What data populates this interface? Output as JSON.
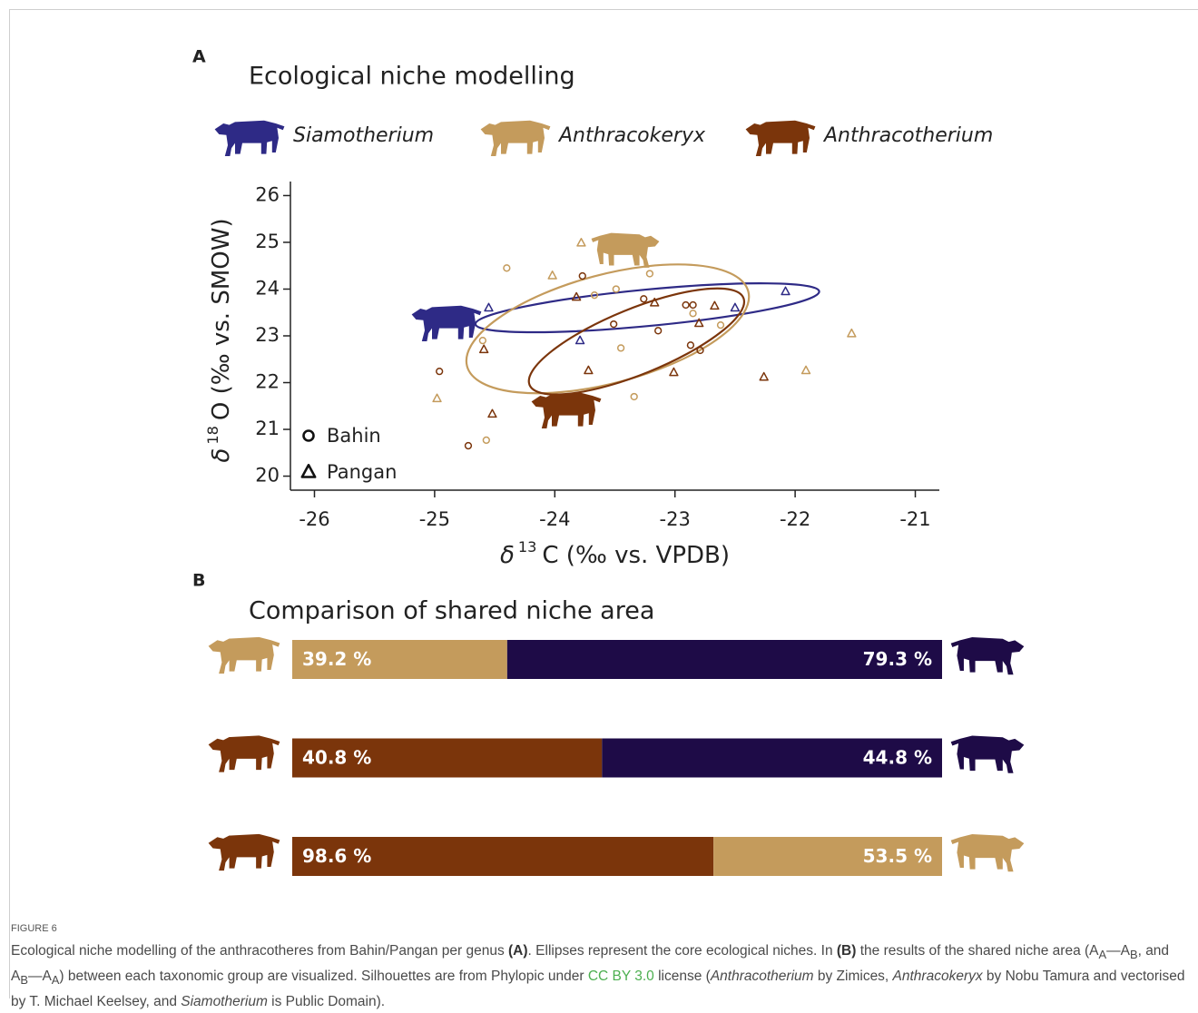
{
  "figure": {
    "label": "FIGURE 6",
    "caption": [
      "Ecological niche modelling of the anthracotheres from Bahin/Pangan per genus ",
      "(A)",
      ". Ellipses represent the core ecological niches. In ",
      "(B)",
      " the results of the shared niche area (A",
      "A",
      "—A",
      "B",
      ", and A",
      "B",
      "—A",
      "A",
      ") between each taxonomic group are visualized. Silhouettes are from Phylopic under ",
      "CC BY 3.0",
      " license (",
      "Anthracotherium",
      " by Zimices, ",
      "Anthracokeryx",
      " by Nobu Tamura and vectorised by T. Michael Keelsey, and ",
      "Siamotherium",
      " is Public Domain)."
    ]
  },
  "chart_data": [
    {
      "type": "scatter",
      "panel": "A",
      "title": "Ecological niche modelling",
      "xlabel": {
        "symbol": "δ",
        "isotope": "13",
        "text": "C (‰ vs. VPDB)"
      },
      "ylabel": {
        "symbol": "δ",
        "isotope": "18",
        "text": "O (‰ vs. SMOW)"
      },
      "xlim": [
        -26.2,
        -20.8
      ],
      "xticks": [
        -26,
        -25,
        -24,
        -23,
        -22,
        -21
      ],
      "ylim": [
        19.7,
        26.3
      ],
      "yticks": [
        20,
        21,
        22,
        23,
        24,
        25,
        26
      ],
      "markers": [
        {
          "name": "Bahin",
          "shape": "circle"
        },
        {
          "name": "Pangan",
          "shape": "triangle"
        }
      ],
      "series": [
        {
          "name": "Siamotherium",
          "color": "#2e2a86",
          "ellipse": {
            "center": [
              -23.23,
              23.6
            ],
            "vertex": [
              -21.8,
              23.95
            ],
            "minor": 0.39
          },
          "groups": [
            {
              "x": [],
              "y": []
            },
            {
              "x": [
                -24.55,
                -23.79,
                -22.5,
                -22.08
              ],
              "y": [
                23.6,
                22.9,
                23.6,
                23.95
              ]
            }
          ]
        },
        {
          "name": "Anthracokeryx",
          "color": "#c49b5c",
          "ellipse": {
            "center": [
              -23.56,
              23.15
            ],
            "vertex": [
              -22.39,
              23.95
            ],
            "minor": 1.16
          },
          "groups": [
            {
              "x": [
                -24.4,
                -24.6,
                -24.57,
                -23.67,
                -23.49,
                -23.21,
                -23.45,
                -23.34,
                -22.85,
                -22.62
              ],
              "y": [
                24.45,
                22.9,
                20.77,
                23.87,
                24.0,
                24.33,
                22.74,
                21.7,
                23.48,
                23.23
              ]
            },
            {
              "x": [
                -24.98,
                -24.02,
                -23.78,
                -21.53,
                -21.91
              ],
              "y": [
                21.66,
                24.29,
                24.99,
                23.05,
                22.26
              ]
            }
          ]
        },
        {
          "name": "Anthracotherium",
          "color": "#7b350b",
          "ellipse": {
            "center": [
              -23.32,
              22.88
            ],
            "vertex": [
              -22.43,
              23.81
            ],
            "minor": 0.7
          },
          "groups": [
            {
              "x": [
                -24.96,
                -24.72,
                -23.77,
                -23.26,
                -22.91,
                -22.85,
                -23.51,
                -23.14,
                -22.87,
                -22.79
              ],
              "y": [
                22.24,
                20.65,
                24.28,
                23.79,
                23.66,
                23.66,
                23.25,
                23.11,
                22.8,
                22.69
              ]
            },
            {
              "x": [
                -24.59,
                -24.52,
                -23.82,
                -23.17,
                -22.67,
                -23.72,
                -22.8,
                -23.01,
                -22.26
              ],
              "y": [
                22.71,
                21.33,
                23.83,
                23.71,
                23.64,
                22.26,
                23.27,
                22.22,
                22.12
              ]
            }
          ]
        }
      ]
    },
    {
      "type": "bar",
      "panel": "B",
      "title": "Comparison of shared niche area",
      "rows": [
        {
          "values": [
            39.2,
            79.3
          ],
          "value_labels": [
            "39.2 %",
            "79.3 %"
          ],
          "colors": [
            "#c49b5c",
            "#1e0b47"
          ]
        },
        {
          "values": [
            40.8,
            44.8
          ],
          "value_labels": [
            "40.8 %",
            "44.8 %"
          ],
          "colors": [
            "#7b350b",
            "#1e0b47"
          ]
        },
        {
          "values": [
            98.6,
            53.5
          ],
          "value_labels": [
            "98.6 %",
            "53.5 %"
          ],
          "colors": [
            "#7b350b",
            "#c49b5c"
          ]
        }
      ]
    }
  ]
}
